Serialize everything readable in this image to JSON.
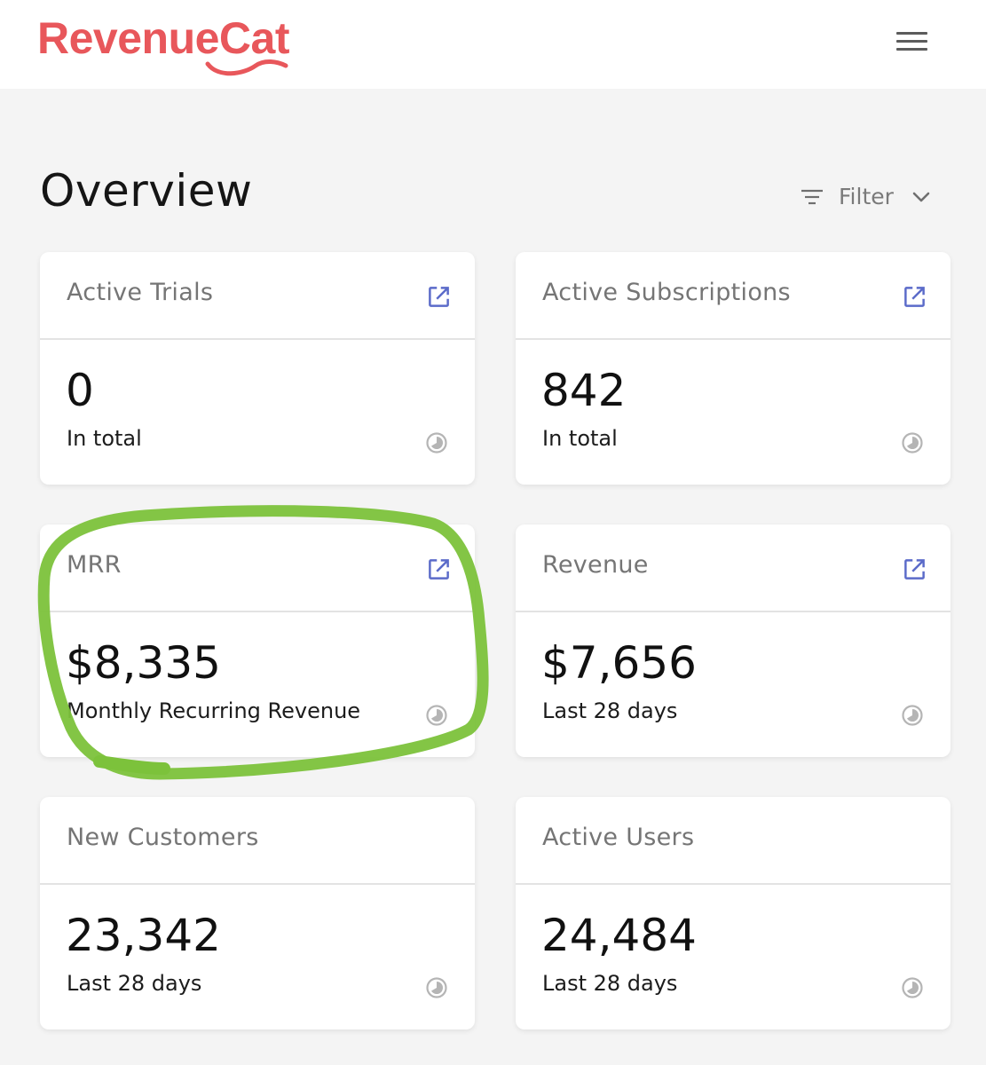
{
  "brand": {
    "logo_text": "RevenueCat",
    "logo_color": "#e8575b"
  },
  "header": {
    "menu_icon": "hamburger-menu-icon"
  },
  "page": {
    "title": "Overview",
    "filter": {
      "label": "Filter",
      "icon": "filter-lines-icon",
      "dropdown_icon": "chevron-down-icon"
    }
  },
  "cards": [
    {
      "title": "Active Trials",
      "value": "0",
      "subtitle": "In total",
      "link_icon": "external-link-icon",
      "status_icon": "clock-icon"
    },
    {
      "title": "Active Subscriptions",
      "value": "842",
      "subtitle": "In total",
      "link_icon": "external-link-icon",
      "status_icon": "clock-icon"
    },
    {
      "title": "MRR",
      "value": "$8,335",
      "subtitle": "Monthly Recurring Revenue",
      "link_icon": "external-link-icon",
      "status_icon": "clock-icon"
    },
    {
      "title": "Revenue",
      "value": "$7,656",
      "subtitle": "Last 28 days",
      "link_icon": "external-link-icon",
      "status_icon": "clock-icon"
    },
    {
      "title": "New Customers",
      "value": "23,342",
      "subtitle": "Last 28 days",
      "status_icon": "clock-icon"
    },
    {
      "title": "Active Users",
      "value": "24,484",
      "subtitle": "Last 28 days",
      "status_icon": "clock-icon"
    }
  ],
  "colors": {
    "link_icon": "#5b6bc9",
    "annotation_highlight": "#7cc23b"
  }
}
